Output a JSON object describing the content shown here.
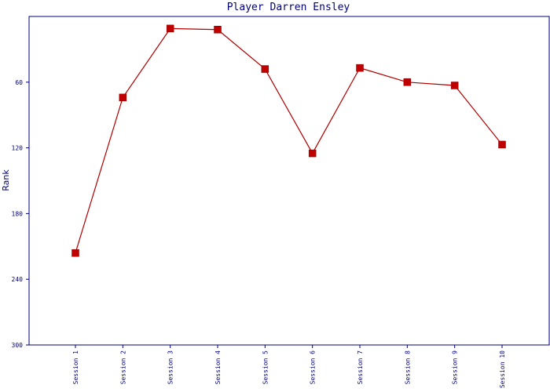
{
  "chart_data": {
    "type": "line",
    "title": "Player Darren Ensley",
    "xlabel": "",
    "ylabel": "Rank",
    "y_inverted": true,
    "ylim": [
      0,
      300
    ],
    "yticks": [
      60,
      120,
      180,
      240,
      300
    ],
    "categories": [
      "Session 1",
      "Session 2",
      "Session 3",
      "Session 4",
      "Session 5",
      "Session 6",
      "Session 7",
      "Session 8",
      "Session 9",
      "Session 10"
    ],
    "series": [
      {
        "values": [
          216,
          74,
          11,
          12,
          48,
          125,
          47,
          60,
          63,
          117
        ]
      }
    ],
    "colors": {
      "line": "#b00000",
      "marker": "#c00000",
      "axis": "#00007a"
    },
    "grid": false
  }
}
